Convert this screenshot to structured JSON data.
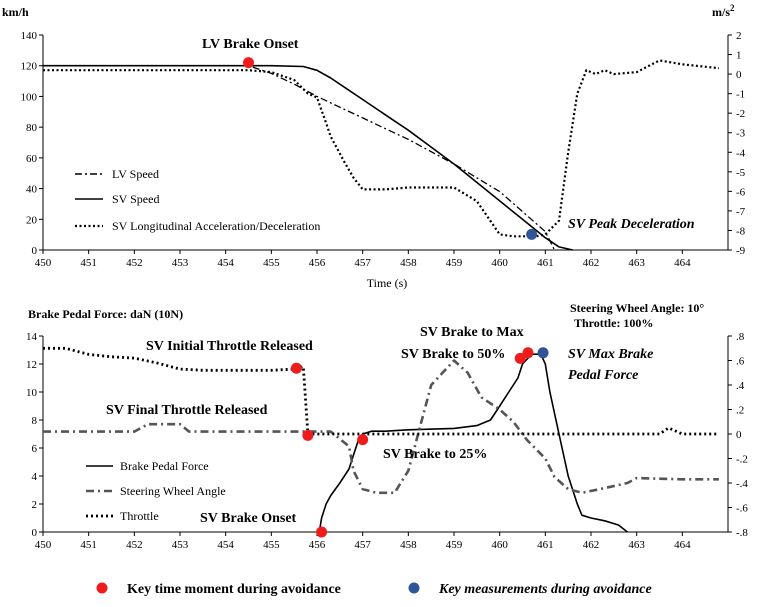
{
  "chart_data": [
    {
      "type": "line",
      "title": "",
      "xlabel": "Time (s)",
      "ylabel": "km/h",
      "y2label": "m/s²",
      "xlim": [
        450,
        465
      ],
      "ylim": [
        0,
        140
      ],
      "y2lim": [
        -9,
        2
      ],
      "xticks": [
        450,
        451,
        452,
        453,
        454,
        455,
        456,
        457,
        458,
        459,
        460,
        461,
        462,
        463,
        464
      ],
      "yticks": [
        0,
        20,
        40,
        60,
        80,
        100,
        120,
        140
      ],
      "y2ticks": [
        2,
        1,
        0,
        -1,
        -2,
        -3,
        -4,
        -5,
        -6,
        -7,
        -8,
        -9
      ],
      "grid": false,
      "legend": "bottom-left",
      "series": [
        {
          "name": "LV Speed",
          "axis": "left",
          "style": "dashdot",
          "x": [
            450,
            454,
            454.5,
            455,
            455.5,
            456,
            456.5,
            457,
            457.5,
            458,
            458.5,
            459,
            459.5,
            460,
            460.5,
            461,
            461.2
          ],
          "y": [
            120,
            120,
            120,
            115,
            108,
            100,
            93,
            86,
            79,
            72,
            64,
            56,
            47,
            38,
            25,
            12,
            0
          ]
        },
        {
          "name": "SV Speed",
          "axis": "left",
          "style": "solid",
          "x": [
            450,
            454,
            455,
            455.7,
            456,
            456.3,
            456.7,
            457,
            457.5,
            458,
            458.5,
            459,
            459.5,
            460,
            460.5,
            461,
            461.3,
            461.6
          ],
          "y": [
            120,
            120,
            120,
            119.5,
            117,
            112,
            104,
            98,
            88,
            78,
            67,
            56,
            44,
            32,
            20,
            8,
            2,
            0
          ]
        },
        {
          "name": "SV Longitudinal Acceleration/Deceleration",
          "axis": "right",
          "style": "dotted",
          "x": [
            450,
            453,
            454.5,
            455,
            455.5,
            455.8,
            456,
            456.2,
            456.3,
            456.6,
            456.8,
            457,
            457.5,
            458,
            459,
            459.5,
            460,
            460.3,
            460.6,
            460.8,
            461,
            461.3,
            461.5,
            461.7,
            461.9,
            462.1,
            462.3,
            462.5,
            463,
            463.5,
            464,
            464.8
          ],
          "y": [
            0.2,
            0.2,
            0.2,
            0.1,
            -0.3,
            -1,
            -1.2,
            -2.5,
            -3.2,
            -4.5,
            -5.3,
            -5.9,
            -5.9,
            -5.8,
            -5.8,
            -6.5,
            -8.2,
            -8.3,
            -8.3,
            -8.3,
            -8.2,
            -7.5,
            -4,
            -1,
            0.2,
            0,
            0.2,
            0,
            0.1,
            0.7,
            0.5,
            0.3
          ]
        }
      ],
      "annotations": [
        {
          "text": "LV Brake Onset",
          "x": 454.5,
          "y": 122,
          "axis": "left",
          "marker": "red"
        },
        {
          "text": "SV Peak Deceleration",
          "x": 460.7,
          "y": -8.2,
          "axis": "right",
          "marker": "blue"
        }
      ]
    },
    {
      "type": "line",
      "title": "",
      "xlabel": "",
      "ylabel": "Brake Pedal Force:  daN  (10N)",
      "y2label": "Steering Wheel Angle: 10°",
      "y2label_2": "Throttle:  100%",
      "xlim": [
        450,
        465
      ],
      "ylim": [
        0,
        14
      ],
      "y2lim": [
        -0.8,
        0.8
      ],
      "xticks": [
        450,
        451,
        452,
        453,
        454,
        455,
        456,
        457,
        458,
        459,
        460,
        461,
        462,
        463,
        464
      ],
      "yticks": [
        0,
        2,
        4,
        6,
        8,
        10,
        12,
        14
      ],
      "y2ticks": [
        0.8,
        0.6,
        0.4,
        0.2,
        0,
        -0.2,
        -0.4,
        -0.6,
        -0.8
      ],
      "grid": false,
      "legend": "bottom-left",
      "series": [
        {
          "name": "Brake Pedal Force",
          "axis": "left",
          "style": "solid",
          "x": [
            456.05,
            456.1,
            456.2,
            456.3,
            456.5,
            456.7,
            456.8,
            456.9,
            457,
            457.2,
            457.5,
            458,
            459,
            459.5,
            459.8,
            460,
            460.2,
            460.4,
            460.5,
            460.7,
            460.9,
            461,
            461.1,
            461.3,
            461.5,
            461.7,
            461.8,
            462,
            462.3,
            462.6,
            462.8
          ],
          "y": [
            0,
            1,
            2,
            2.6,
            3.5,
            4.5,
            5.5,
            6.5,
            7,
            7.2,
            7.2,
            7.3,
            7.4,
            7.6,
            8,
            9,
            10,
            11,
            12,
            12.7,
            12.7,
            12,
            10,
            7,
            4,
            2,
            1.2,
            1,
            0.8,
            0.5,
            0
          ]
        },
        {
          "name": "Steering Wheel Angle",
          "axis": "right",
          "style": "dashdot",
          "x": [
            450,
            452,
            452.3,
            453,
            453.2,
            455,
            456,
            456.3,
            456.7,
            456.8,
            457,
            457.3,
            457.7,
            458,
            458.5,
            459,
            459.3,
            459.6,
            460,
            460.3,
            460.6,
            461,
            461.2,
            461.5,
            461.8,
            462.2,
            462.8,
            463,
            464,
            464.8
          ],
          "y": [
            0.02,
            0.02,
            0.08,
            0.08,
            0.02,
            0.02,
            0.02,
            0.02,
            -0.1,
            -0.3,
            -0.45,
            -0.48,
            -0.48,
            -0.3,
            0.4,
            0.6,
            0.5,
            0.3,
            0.2,
            0.1,
            -0.05,
            -0.2,
            -0.35,
            -0.45,
            -0.48,
            -0.45,
            -0.4,
            -0.36,
            -0.37,
            -0.37
          ]
        },
        {
          "name": "Throttle",
          "axis": "right",
          "style": "dotted",
          "x": [
            450,
            450.5,
            451,
            451.5,
            452,
            452.5,
            453,
            453.5,
            454,
            455,
            455.5,
            455.7,
            455.8,
            456,
            457,
            460,
            463,
            463.5,
            463.7,
            464,
            464.8
          ],
          "y": [
            0.7,
            0.7,
            0.65,
            0.63,
            0.62,
            0.58,
            0.53,
            0.52,
            0.52,
            0.52,
            0.53,
            0.55,
            0,
            0,
            0,
            0,
            0,
            0,
            0.05,
            0,
            0
          ]
        }
      ],
      "annotations": [
        {
          "text": "SV Initial Throttle Released",
          "x": 455.55,
          "y": 11.7,
          "axis": "left",
          "marker": "red"
        },
        {
          "text": "SV Final Throttle  Released",
          "x": 455.8,
          "y": 6.9,
          "axis": "left",
          "marker": "red"
        },
        {
          "text": "SV Brake Onset",
          "x": 456.1,
          "y": 0,
          "axis": "left",
          "marker": "red"
        },
        {
          "text": "SV Brake to 25%",
          "x": 457,
          "y": 6.6,
          "axis": "left",
          "marker": "red"
        },
        {
          "text": "SV Brake to 50%",
          "x": 460.45,
          "y": 12.4,
          "axis": "left",
          "marker": "red"
        },
        {
          "text": "SV Brake to Max",
          "x": 460.62,
          "y": 12.8,
          "axis": "left",
          "marker": "red"
        },
        {
          "text": "SV Max Brake Pedal Force",
          "x": 460.95,
          "y": 12.8,
          "axis": "left",
          "marker": "blue"
        }
      ]
    }
  ],
  "footer": {
    "key_time": "Key time moment  during avoidance",
    "key_meas": "Key measurements during avoidance",
    "red": "#ee1c1c",
    "blue": "#2f5597"
  }
}
